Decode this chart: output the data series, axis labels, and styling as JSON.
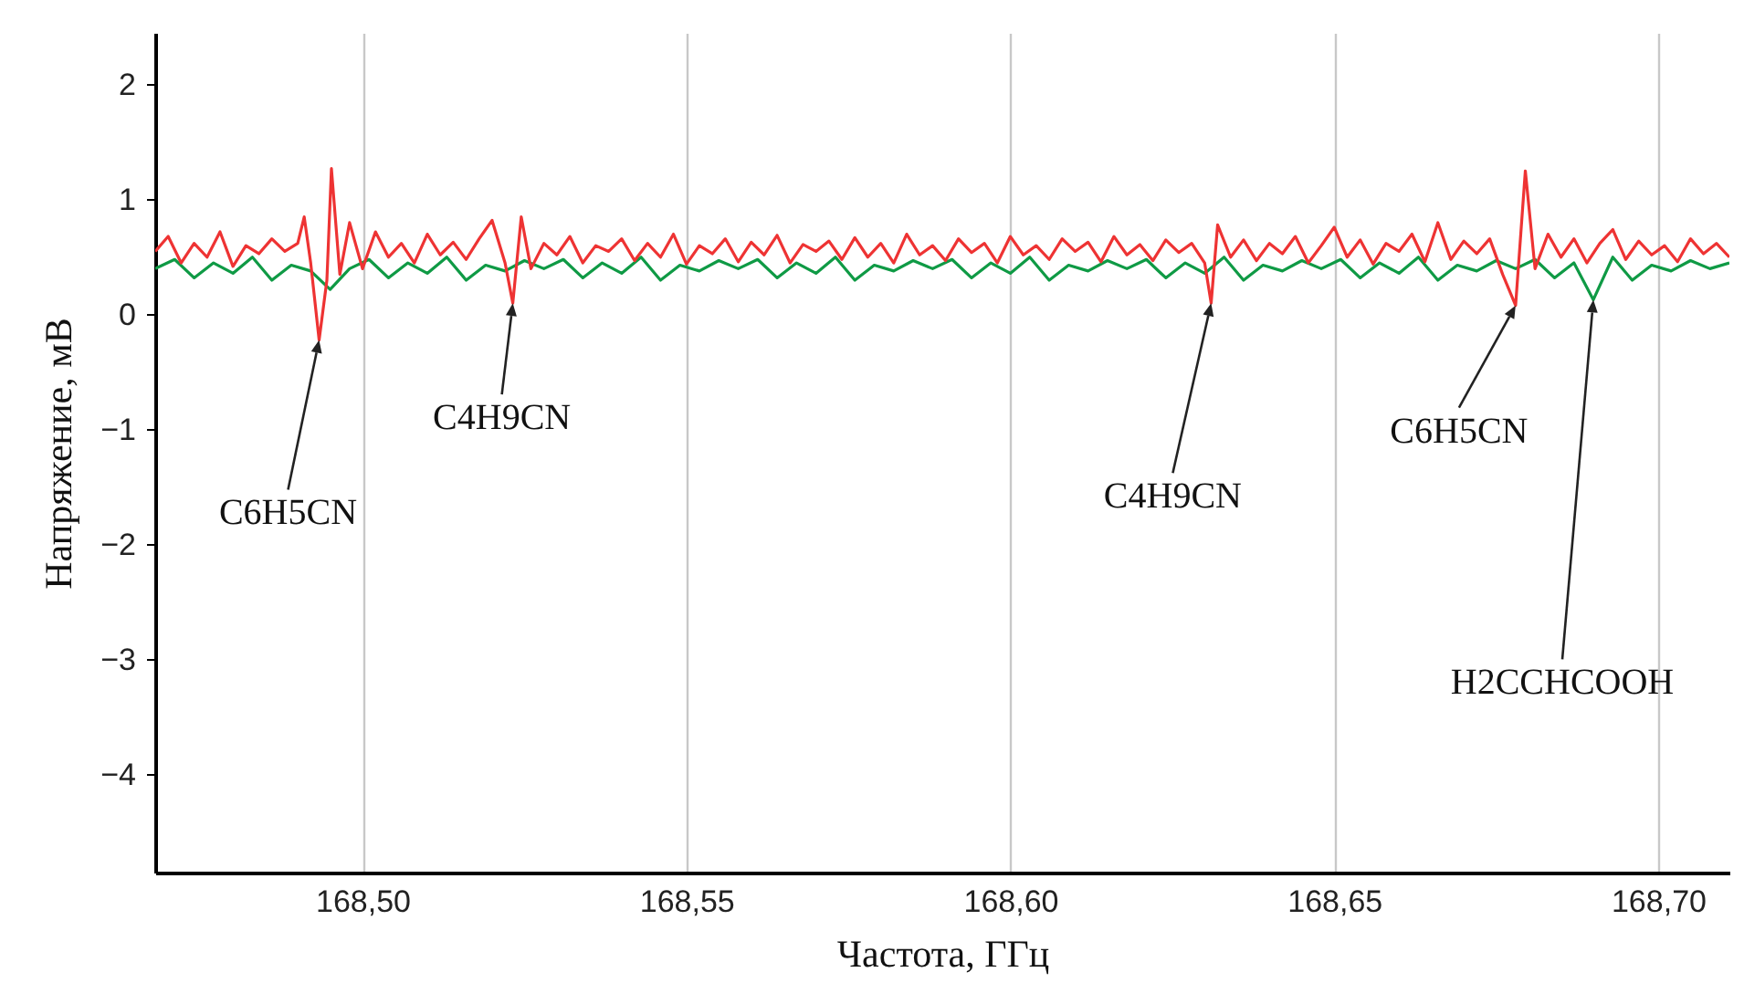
{
  "chart_data": {
    "type": "line",
    "xlabel": "Частота, ГГц",
    "ylabel": "Напряжение, мВ",
    "xlim": [
      168.468,
      168.711
    ],
    "ylim": [
      -4.85,
      2.45
    ],
    "xticks": [
      {
        "value": 168.5,
        "label": "168,50"
      },
      {
        "value": 168.55,
        "label": "168,55"
      },
      {
        "value": 168.6,
        "label": "168,60"
      },
      {
        "value": 168.65,
        "label": "168,65"
      },
      {
        "value": 168.7,
        "label": "168,70"
      }
    ],
    "yticks": [
      {
        "value": -4,
        "label": "−4"
      },
      {
        "value": -3,
        "label": "−3"
      },
      {
        "value": -2,
        "label": "−2"
      },
      {
        "value": -1,
        "label": "−1"
      },
      0,
      1,
      2
    ],
    "grid": "x",
    "marker": "none",
    "line_style": "solid",
    "series": [
      {
        "color": "#0f9a45",
        "x": [
          168.468,
          168.471,
          168.474,
          168.477,
          168.48,
          168.483,
          168.486,
          168.489,
          168.492,
          168.495,
          168.498,
          168.501,
          168.504,
          168.507,
          168.51,
          168.513,
          168.516,
          168.519,
          168.522,
          168.525,
          168.528,
          168.531,
          168.534,
          168.537,
          168.54,
          168.543,
          168.546,
          168.549,
          168.552,
          168.555,
          168.558,
          168.561,
          168.564,
          168.567,
          168.57,
          168.573,
          168.576,
          168.579,
          168.582,
          168.585,
          168.588,
          168.591,
          168.594,
          168.597,
          168.6,
          168.603,
          168.606,
          168.609,
          168.612,
          168.615,
          168.618,
          168.621,
          168.624,
          168.627,
          168.63,
          168.633,
          168.636,
          168.639,
          168.642,
          168.645,
          168.648,
          168.651,
          168.654,
          168.657,
          168.66,
          168.663,
          168.666,
          168.669,
          168.672,
          168.675,
          168.678,
          168.681,
          168.684,
          168.687,
          168.69,
          168.693,
          168.696,
          168.699,
          168.702,
          168.705,
          168.708,
          168.711
        ],
        "values": [
          0.4,
          0.48,
          0.32,
          0.45,
          0.36,
          0.5,
          0.3,
          0.43,
          0.38,
          0.22,
          0.4,
          0.48,
          0.32,
          0.45,
          0.36,
          0.5,
          0.3,
          0.43,
          0.38,
          0.47,
          0.4,
          0.48,
          0.32,
          0.45,
          0.36,
          0.5,
          0.3,
          0.43,
          0.38,
          0.47,
          0.4,
          0.48,
          0.32,
          0.45,
          0.36,
          0.5,
          0.3,
          0.43,
          0.38,
          0.47,
          0.4,
          0.48,
          0.32,
          0.45,
          0.36,
          0.5,
          0.3,
          0.43,
          0.38,
          0.47,
          0.4,
          0.48,
          0.32,
          0.45,
          0.36,
          0.5,
          0.3,
          0.43,
          0.38,
          0.47,
          0.4,
          0.48,
          0.32,
          0.45,
          0.36,
          0.5,
          0.3,
          0.43,
          0.38,
          0.47,
          0.4,
          0.48,
          0.32,
          0.45,
          0.13,
          0.5,
          0.3,
          0.43,
          0.38,
          0.47,
          0.4,
          0.45
        ]
      },
      {
        "color": "#ee3333",
        "x": [
          168.468,
          168.47,
          168.472,
          168.474,
          168.476,
          168.478,
          168.48,
          168.482,
          168.484,
          168.486,
          168.488,
          168.49,
          168.491,
          168.492,
          168.4933,
          168.4945,
          168.4952,
          168.4965,
          168.498,
          168.5,
          168.502,
          168.504,
          168.506,
          168.508,
          168.51,
          168.512,
          168.514,
          168.516,
          168.518,
          168.52,
          168.522,
          168.5232,
          168.5245,
          168.526,
          168.528,
          168.53,
          168.532,
          168.534,
          168.536,
          168.538,
          168.54,
          168.542,
          168.544,
          168.546,
          168.548,
          168.55,
          168.552,
          168.554,
          168.556,
          168.558,
          168.56,
          168.562,
          168.564,
          168.566,
          168.568,
          168.57,
          168.572,
          168.574,
          168.576,
          168.578,
          168.58,
          168.582,
          168.584,
          168.586,
          168.588,
          168.59,
          168.592,
          168.594,
          168.596,
          168.598,
          168.6,
          168.602,
          168.604,
          168.606,
          168.608,
          168.61,
          168.612,
          168.614,
          168.616,
          168.618,
          168.62,
          168.622,
          168.624,
          168.626,
          168.628,
          168.63,
          168.631,
          168.632,
          168.634,
          168.636,
          168.638,
          168.64,
          168.642,
          168.644,
          168.646,
          168.648,
          168.65,
          168.652,
          168.654,
          168.656,
          168.658,
          168.66,
          168.662,
          168.664,
          168.666,
          168.668,
          168.67,
          168.672,
          168.674,
          168.676,
          168.678,
          168.6795,
          168.681,
          168.683,
          168.685,
          168.687,
          168.689,
          168.691,
          168.693,
          168.695,
          168.697,
          168.699,
          168.701,
          168.703,
          168.705,
          168.707,
          168.709,
          168.711
        ],
        "values": [
          0.55,
          0.68,
          0.45,
          0.62,
          0.5,
          0.72,
          0.42,
          0.6,
          0.53,
          0.66,
          0.55,
          0.62,
          0.85,
          0.45,
          -0.22,
          0.3,
          1.27,
          0.35,
          0.8,
          0.4,
          0.72,
          0.5,
          0.62,
          0.45,
          0.7,
          0.52,
          0.63,
          0.48,
          0.66,
          0.82,
          0.45,
          0.1,
          0.85,
          0.4,
          0.62,
          0.52,
          0.68,
          0.45,
          0.6,
          0.55,
          0.66,
          0.47,
          0.62,
          0.5,
          0.7,
          0.44,
          0.6,
          0.53,
          0.66,
          0.46,
          0.63,
          0.52,
          0.69,
          0.45,
          0.61,
          0.55,
          0.64,
          0.48,
          0.67,
          0.5,
          0.62,
          0.45,
          0.7,
          0.52,
          0.6,
          0.47,
          0.66,
          0.54,
          0.62,
          0.45,
          0.68,
          0.52,
          0.6,
          0.48,
          0.66,
          0.55,
          0.63,
          0.46,
          0.68,
          0.52,
          0.61,
          0.47,
          0.65,
          0.54,
          0.62,
          0.45,
          0.1,
          0.78,
          0.5,
          0.65,
          0.47,
          0.62,
          0.53,
          0.68,
          0.45,
          0.6,
          0.76,
          0.5,
          0.65,
          0.44,
          0.62,
          0.55,
          0.7,
          0.46,
          0.8,
          0.48,
          0.64,
          0.53,
          0.66,
          0.35,
          0.08,
          1.25,
          0.4,
          0.7,
          0.5,
          0.66,
          0.45,
          0.62,
          0.74,
          0.48,
          0.64,
          0.52,
          0.6,
          0.46,
          0.66,
          0.53,
          0.62,
          0.5
        ]
      }
    ],
    "annotations": [
      {
        "text": "C6H5CN",
        "x": 168.4933,
        "y": -0.22
      },
      {
        "text": "C4H9CN",
        "x": 168.5232,
        "y": 0.1
      },
      {
        "text": "C4H9CN",
        "x": 168.631,
        "y": 0.1
      },
      {
        "text": "C6H5CN",
        "x": 168.678,
        "y": 0.08
      },
      {
        "text": "H2CCHCOOH",
        "x": 168.69,
        "y": 0.13
      }
    ]
  }
}
